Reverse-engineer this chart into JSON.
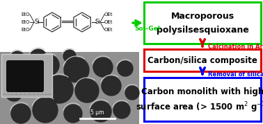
{
  "box1_text_line1": "Macroporous",
  "box1_text_line2": "polysilsesquioxane",
  "box1_color": "#00cc00",
  "box2_text": "Carbon/silica composite",
  "box2_color": "#dd0000",
  "box3_text_line1": "Carbon monolith with high",
  "box3_text_line2": "surface area (> 1500 m² g⁻¹)",
  "box3_color": "#0000ee",
  "arrow1_color": "#00cc00",
  "arrow2_color": "#dd0000",
  "arrow3_color": "#0000ee",
  "label1": "Sol–Gel",
  "label1_color": "#00cc00",
  "label2": "Calcination in Ar",
  "label2_color": "#dd0000",
  "label3": "Removal of silica",
  "label3_color": "#0000ee",
  "bg_color": "#ffffff",
  "scale_bar_text": "5 μm"
}
